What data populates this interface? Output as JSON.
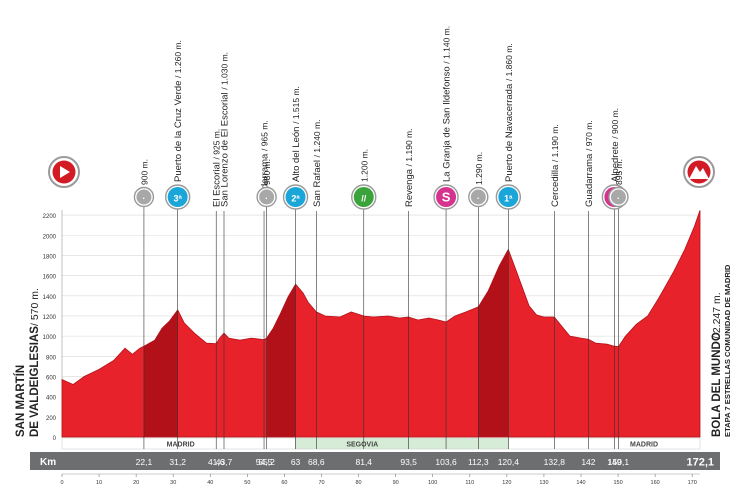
{
  "chart_data": {
    "type": "area",
    "title": "",
    "xlabel": "",
    "ylabel": "",
    "xlim": [
      0,
      172.1
    ],
    "ylim": [
      0,
      2300
    ],
    "grid": true,
    "x_ticks": [
      "0",
      "10",
      "20",
      "30",
      "40",
      "50",
      "60",
      "70",
      "80",
      "90",
      "100",
      "110",
      "120",
      "130",
      "140",
      "150",
      "160",
      "170"
    ],
    "y_ticks": [
      "0",
      "200",
      "400",
      "600",
      "800",
      "1000",
      "1200",
      "1400",
      "1600",
      "1800",
      "2000",
      "2200"
    ],
    "start": {
      "name": "SAN MARTÍN DE VALDEIGLESIAS",
      "alt": "/ 570 m."
    },
    "finish": {
      "name": "BOLA DEL MUNDO",
      "alt": "/ 2.247 m.",
      "subtitle": "ETAPA 7 ESTRELLAS COMUNIDAD DE MADRID"
    },
    "km_label": "Km",
    "total_km": "172,1",
    "regions": [
      {
        "label": "MADRID",
        "from": 0,
        "to": 63,
        "color": "#ffffff"
      },
      {
        "label": "SEGOVIA",
        "from": 63,
        "to": 120.4,
        "color": "#d6ecd6"
      },
      {
        "label": "MADRID",
        "from": 120.4,
        "to": 172.1,
        "color": "#ffffff"
      }
    ],
    "region_label_km": [
      32,
      81,
      157
    ],
    "profile": [
      {
        "x": 0,
        "y": 570
      },
      {
        "x": 3,
        "y": 520
      },
      {
        "x": 6,
        "y": 600
      },
      {
        "x": 10,
        "y": 670
      },
      {
        "x": 14,
        "y": 760
      },
      {
        "x": 17,
        "y": 880
      },
      {
        "x": 19,
        "y": 820
      },
      {
        "x": 21,
        "y": 880
      },
      {
        "x": 22.1,
        "y": 900
      },
      {
        "x": 25,
        "y": 960
      },
      {
        "x": 27,
        "y": 1080
      },
      {
        "x": 29,
        "y": 1150
      },
      {
        "x": 31.2,
        "y": 1260
      },
      {
        "x": 33,
        "y": 1130
      },
      {
        "x": 36,
        "y": 1020
      },
      {
        "x": 39,
        "y": 930
      },
      {
        "x": 41.6,
        "y": 925
      },
      {
        "x": 42.5,
        "y": 980
      },
      {
        "x": 43.7,
        "y": 1030
      },
      {
        "x": 45,
        "y": 980
      },
      {
        "x": 48,
        "y": 960
      },
      {
        "x": 51,
        "y": 980
      },
      {
        "x": 54.5,
        "y": 965
      },
      {
        "x": 55.2,
        "y": 980
      },
      {
        "x": 57,
        "y": 1080
      },
      {
        "x": 59,
        "y": 1230
      },
      {
        "x": 61,
        "y": 1390
      },
      {
        "x": 63,
        "y": 1515
      },
      {
        "x": 65,
        "y": 1430
      },
      {
        "x": 66.5,
        "y": 1330
      },
      {
        "x": 68.6,
        "y": 1240
      },
      {
        "x": 71,
        "y": 1200
      },
      {
        "x": 75,
        "y": 1190
      },
      {
        "x": 78,
        "y": 1240
      },
      {
        "x": 81.4,
        "y": 1200
      },
      {
        "x": 84,
        "y": 1190
      },
      {
        "x": 88,
        "y": 1200
      },
      {
        "x": 91,
        "y": 1180
      },
      {
        "x": 93.5,
        "y": 1190
      },
      {
        "x": 96,
        "y": 1160
      },
      {
        "x": 99,
        "y": 1180
      },
      {
        "x": 101.5,
        "y": 1160
      },
      {
        "x": 103.6,
        "y": 1140
      },
      {
        "x": 106,
        "y": 1200
      },
      {
        "x": 109,
        "y": 1240
      },
      {
        "x": 112.3,
        "y": 1290
      },
      {
        "x": 115,
        "y": 1450
      },
      {
        "x": 118,
        "y": 1700
      },
      {
        "x": 120.4,
        "y": 1860
      },
      {
        "x": 122,
        "y": 1700
      },
      {
        "x": 124,
        "y": 1500
      },
      {
        "x": 126,
        "y": 1300
      },
      {
        "x": 128,
        "y": 1210
      },
      {
        "x": 130,
        "y": 1190
      },
      {
        "x": 132.8,
        "y": 1190
      },
      {
        "x": 135,
        "y": 1090
      },
      {
        "x": 137,
        "y": 1000
      },
      {
        "x": 140,
        "y": 980
      },
      {
        "x": 142,
        "y": 970
      },
      {
        "x": 144,
        "y": 930
      },
      {
        "x": 147,
        "y": 920
      },
      {
        "x": 149,
        "y": 900
      },
      {
        "x": 150.1,
        "y": 895
      },
      {
        "x": 152,
        "y": 1000
      },
      {
        "x": 155,
        "y": 1120
      },
      {
        "x": 158,
        "y": 1200
      },
      {
        "x": 161,
        "y": 1380
      },
      {
        "x": 165,
        "y": 1640
      },
      {
        "x": 168,
        "y": 1860
      },
      {
        "x": 170.5,
        "y": 2080
      },
      {
        "x": 172.1,
        "y": 2247
      }
    ],
    "waypoints": [
      {
        "km": "22,1",
        "x": 22.1,
        "name": "",
        "alt": "900 m.",
        "icon": "feed-gray"
      },
      {
        "km": "31,2",
        "x": 31.2,
        "name": "Puerto de la Cruz Verde",
        "alt": "/ 1.260 m.",
        "icon": "climb-cat3"
      },
      {
        "km": "41,6",
        "x": 41.6,
        "name": "El Escorial",
        "alt": "/ 925 m.",
        "icon": ""
      },
      {
        "km": "43,7",
        "x": 43.7,
        "name": "San Lorenzo de El Escorial",
        "alt": "/ 1.030 m.",
        "icon": ""
      },
      {
        "km": "54,5",
        "x": 54.5,
        "name": "Guadarrama",
        "alt": "/ 965 m.",
        "icon": ""
      },
      {
        "km": "55,2",
        "x": 55.2,
        "name": "",
        "alt": "980 m.",
        "icon": "feed-gray"
      },
      {
        "km": "63",
        "x": 63,
        "name": "Alto del León",
        "alt": "/ 1.515 m.",
        "icon": "climb-cat2"
      },
      {
        "km": "68,6",
        "x": 68.6,
        "name": "San Rafael",
        "alt": "/ 1.240 m.",
        "icon": ""
      },
      {
        "km": "81,4",
        "x": 81.4,
        "name": "",
        "alt": "1.200 m.",
        "icon": "feed-zone"
      },
      {
        "km": "93,5",
        "x": 93.5,
        "name": "Revenga",
        "alt": "/ 1.190 m.",
        "icon": ""
      },
      {
        "km": "103,6",
        "x": 103.6,
        "name": "La Granja de San Ildefonso",
        "alt": "/ 1.140 m.",
        "icon": "sprint"
      },
      {
        "km": "112,3",
        "x": 112.3,
        "name": "",
        "alt": "1.290 m.",
        "icon": "feed-gray"
      },
      {
        "km": "120,4",
        "x": 120.4,
        "name": "Puerto de Navacerrada",
        "alt": "/ 1.860 m.",
        "icon": "climb-cat1"
      },
      {
        "km": "132,8",
        "x": 132.8,
        "name": "Cercedilla",
        "alt": "/ 1.190 m.",
        "icon": ""
      },
      {
        "km": "142",
        "x": 142,
        "name": "Guadarrama",
        "alt": "/ 970 m.",
        "icon": ""
      },
      {
        "km": "149",
        "x": 149,
        "name": "Alpedrete",
        "alt": "/ 900 m.",
        "icon": "sprint"
      },
      {
        "km": "150,1",
        "x": 150.1,
        "name": "",
        "alt": "895 m.",
        "icon": "feed-gray"
      }
    ],
    "colors": {
      "profile_fill": "#e8222a",
      "profile_dark": "#b3121a",
      "shade": "#a80e16",
      "km_bar": "#6d6e70",
      "sprint": "#d6338f",
      "climb": "#1aa6d8",
      "feed": "#3aa33a",
      "start_finish": "#d31b26"
    }
  }
}
